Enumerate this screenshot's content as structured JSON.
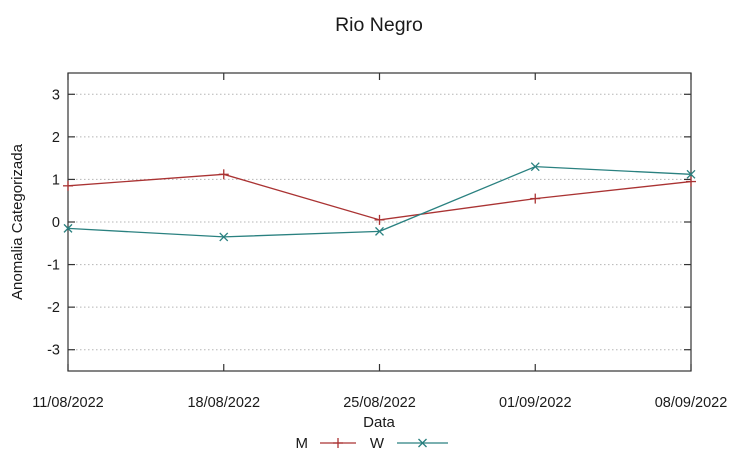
{
  "chart_data": {
    "type": "line",
    "title": "Rio Negro",
    "xlabel": "Data",
    "ylabel": "Anomalia Categorizada",
    "x": [
      "11/08/2022",
      "18/08/2022",
      "25/08/2022",
      "01/09/2022",
      "08/09/2022"
    ],
    "yticks": [
      3,
      2,
      1,
      0,
      -1,
      -2,
      -3
    ],
    "ylim": [
      -3.5,
      3.5
    ],
    "grid": "horizontal-dotted",
    "legend_position": "bottom-center-below-xlabel",
    "series": [
      {
        "name": "M",
        "color": "#aa3333",
        "marker": "plus",
        "values": [
          0.85,
          1.12,
          0.05,
          0.55,
          0.95
        ]
      },
      {
        "name": "W",
        "color": "#2a8180",
        "marker": "cross",
        "values": [
          -0.15,
          -0.35,
          -0.22,
          1.3,
          1.12
        ]
      }
    ]
  }
}
